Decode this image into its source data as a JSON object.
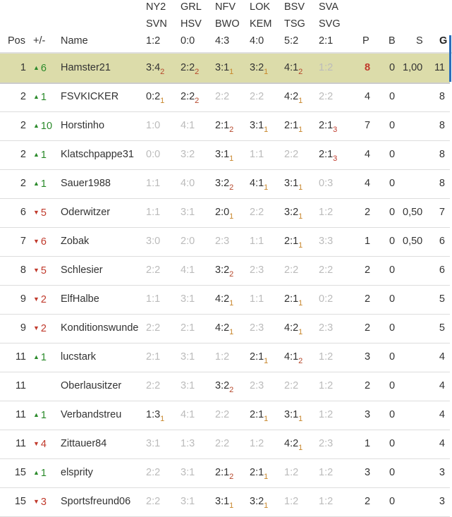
{
  "header": {
    "pos": "Pos",
    "change": "+/-",
    "name": "Name",
    "games": [
      {
        "home": "NY2",
        "away": "SVN",
        "result": "1:2"
      },
      {
        "home": "GRL",
        "away": "HSV",
        "result": "0:0"
      },
      {
        "home": "NFV",
        "away": "BWO",
        "result": "4:3"
      },
      {
        "home": "LOK",
        "away": "KEM",
        "result": "4:0"
      },
      {
        "home": "BSV",
        "away": "TSG",
        "result": "5:2"
      },
      {
        "home": "SVA",
        "away": "SVG",
        "result": "2:1"
      }
    ],
    "p": "P",
    "b": "B",
    "s": "S",
    "g": "G"
  },
  "colors": {
    "highlight_row": "#dcdcaa",
    "up": "#2a8a2a",
    "down": "#c0392b",
    "points1": "#c8862a",
    "points2": "#b5472a",
    "points3": "#c0392b",
    "no_points": "#bbbbbb"
  },
  "rows": [
    {
      "pos": "1",
      "dir": "up",
      "change": "6",
      "name": "Hamster21",
      "tips": [
        [
          "3:4",
          "2"
        ],
        [
          "2:2",
          "2"
        ],
        [
          "3:1",
          "1"
        ],
        [
          "3:2",
          "1"
        ],
        [
          "4:1",
          "2"
        ],
        [
          "1:2",
          null
        ]
      ],
      "p": "8",
      "b": "0",
      "s": "1,00",
      "g": "11",
      "highlight": true
    },
    {
      "pos": "2",
      "dir": "up",
      "change": "1",
      "name": "FSVKICKER",
      "tips": [
        [
          "0:2",
          "1"
        ],
        [
          "2:2",
          "2"
        ],
        [
          "2:2",
          null
        ],
        [
          "2:2",
          null
        ],
        [
          "4:2",
          "1"
        ],
        [
          "2:2",
          null
        ]
      ],
      "p": "4",
      "b": "0",
      "s": "",
      "g": "8"
    },
    {
      "pos": "2",
      "dir": "up",
      "change": "10",
      "name": "Horstinho",
      "tips": [
        [
          "1:0",
          null
        ],
        [
          "4:1",
          null
        ],
        [
          "2:1",
          "2"
        ],
        [
          "3:1",
          "1"
        ],
        [
          "2:1",
          "1"
        ],
        [
          "2:1",
          "3"
        ]
      ],
      "p": "7",
      "b": "0",
      "s": "",
      "g": "8"
    },
    {
      "pos": "2",
      "dir": "up",
      "change": "1",
      "name": "Klatschpappe31",
      "tips": [
        [
          "0:0",
          null
        ],
        [
          "3:2",
          null
        ],
        [
          "3:1",
          "1"
        ],
        [
          "1:1",
          null
        ],
        [
          "2:2",
          null
        ],
        [
          "2:1",
          "3"
        ]
      ],
      "p": "4",
      "b": "0",
      "s": "",
      "g": "8"
    },
    {
      "pos": "2",
      "dir": "up",
      "change": "1",
      "name": "Sauer1988",
      "tips": [
        [
          "1:1",
          null
        ],
        [
          "4:0",
          null
        ],
        [
          "3:2",
          "2"
        ],
        [
          "4:1",
          "1"
        ],
        [
          "3:1",
          "1"
        ],
        [
          "0:3",
          null
        ]
      ],
      "p": "4",
      "b": "0",
      "s": "",
      "g": "8"
    },
    {
      "pos": "6",
      "dir": "down",
      "change": "5",
      "name": "Oderwitzer",
      "tips": [
        [
          "1:1",
          null
        ],
        [
          "3:1",
          null
        ],
        [
          "2:0",
          "1"
        ],
        [
          "2:2",
          null
        ],
        [
          "3:2",
          "1"
        ],
        [
          "1:2",
          null
        ]
      ],
      "p": "2",
      "b": "0",
      "s": "0,50",
      "g": "7"
    },
    {
      "pos": "7",
      "dir": "down",
      "change": "6",
      "name": "Zobak",
      "tips": [
        [
          "3:0",
          null
        ],
        [
          "2:0",
          null
        ],
        [
          "2:3",
          null
        ],
        [
          "1:1",
          null
        ],
        [
          "2:1",
          "1"
        ],
        [
          "3:3",
          null
        ]
      ],
      "p": "1",
      "b": "0",
      "s": "0,50",
      "g": "6"
    },
    {
      "pos": "8",
      "dir": "down",
      "change": "5",
      "name": "Schlesier",
      "tips": [
        [
          "2:2",
          null
        ],
        [
          "4:1",
          null
        ],
        [
          "3:2",
          "2"
        ],
        [
          "2:3",
          null
        ],
        [
          "2:2",
          null
        ],
        [
          "2:2",
          null
        ]
      ],
      "p": "2",
      "b": "0",
      "s": "",
      "g": "6"
    },
    {
      "pos": "9",
      "dir": "down",
      "change": "2",
      "name": "ElfHalbe",
      "tips": [
        [
          "1:1",
          null
        ],
        [
          "3:1",
          null
        ],
        [
          "4:2",
          "1"
        ],
        [
          "1:1",
          null
        ],
        [
          "2:1",
          "1"
        ],
        [
          "0:2",
          null
        ]
      ],
      "p": "2",
      "b": "0",
      "s": "",
      "g": "5"
    },
    {
      "pos": "9",
      "dir": "down",
      "change": "2",
      "name": "Konditionswunde",
      "tips": [
        [
          "2:2",
          null
        ],
        [
          "2:1",
          null
        ],
        [
          "4:2",
          "1"
        ],
        [
          "2:3",
          null
        ],
        [
          "4:2",
          "1"
        ],
        [
          "2:3",
          null
        ]
      ],
      "p": "2",
      "b": "0",
      "s": "",
      "g": "5"
    },
    {
      "pos": "11",
      "dir": "up",
      "change": "1",
      "name": "lucstark",
      "tips": [
        [
          "2:1",
          null
        ],
        [
          "3:1",
          null
        ],
        [
          "1:2",
          null
        ],
        [
          "2:1",
          "1"
        ],
        [
          "4:1",
          "2"
        ],
        [
          "1:2",
          null
        ]
      ],
      "p": "3",
      "b": "0",
      "s": "",
      "g": "4"
    },
    {
      "pos": "11",
      "dir": "",
      "change": "",
      "name": "Oberlausitzer",
      "tips": [
        [
          "2:2",
          null
        ],
        [
          "3:1",
          null
        ],
        [
          "3:2",
          "2"
        ],
        [
          "2:3",
          null
        ],
        [
          "2:2",
          null
        ],
        [
          "1:2",
          null
        ]
      ],
      "p": "2",
      "b": "0",
      "s": "",
      "g": "4"
    },
    {
      "pos": "11",
      "dir": "up",
      "change": "1",
      "name": "Verbandstreu",
      "tips": [
        [
          "1:3",
          "1"
        ],
        [
          "4:1",
          null
        ],
        [
          "2:2",
          null
        ],
        [
          "2:1",
          "1"
        ],
        [
          "3:1",
          "1"
        ],
        [
          "1:2",
          null
        ]
      ],
      "p": "3",
      "b": "0",
      "s": "",
      "g": "4"
    },
    {
      "pos": "11",
      "dir": "down",
      "change": "4",
      "name": "Zittauer84",
      "tips": [
        [
          "3:1",
          null
        ],
        [
          "1:3",
          null
        ],
        [
          "2:2",
          null
        ],
        [
          "1:2",
          null
        ],
        [
          "4:2",
          "1"
        ],
        [
          "2:3",
          null
        ]
      ],
      "p": "1",
      "b": "0",
      "s": "",
      "g": "4"
    },
    {
      "pos": "15",
      "dir": "up",
      "change": "1",
      "name": "elsprity",
      "tips": [
        [
          "2:2",
          null
        ],
        [
          "3:1",
          null
        ],
        [
          "2:1",
          "2"
        ],
        [
          "2:1",
          "1"
        ],
        [
          "1:2",
          null
        ],
        [
          "1:2",
          null
        ]
      ],
      "p": "3",
      "b": "0",
      "s": "",
      "g": "3"
    },
    {
      "pos": "15",
      "dir": "down",
      "change": "3",
      "name": "Sportsfreund06",
      "tips": [
        [
          "2:2",
          null
        ],
        [
          "3:1",
          null
        ],
        [
          "3:1",
          "1"
        ],
        [
          "3:2",
          "1"
        ],
        [
          "1:2",
          null
        ],
        [
          "1:2",
          null
        ]
      ],
      "p": "2",
      "b": "0",
      "s": "",
      "g": "3"
    }
  ]
}
